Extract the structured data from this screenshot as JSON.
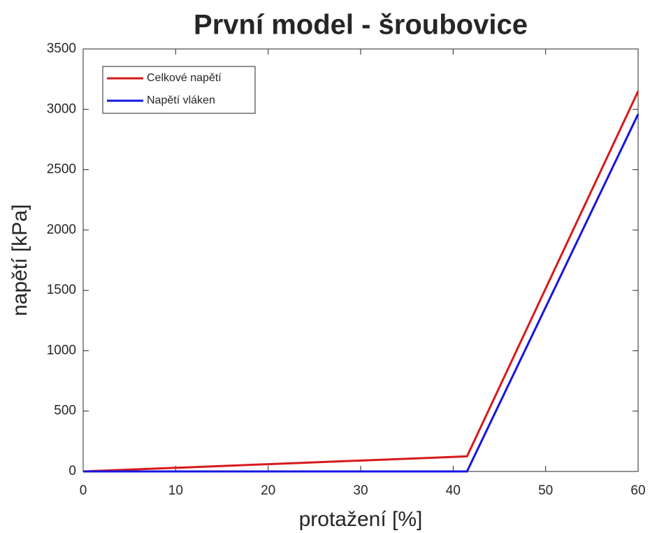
{
  "chart_data": {
    "type": "line",
    "title": "První model - šroubovice",
    "xlabel": "protažení [%]",
    "ylabel": "napětí [kPa]",
    "x": [
      0,
      41.5,
      60
    ],
    "series": [
      {
        "name": "Celkové napětí",
        "color": "#d7191c",
        "values": [
          0,
          125,
          3150
        ]
      },
      {
        "name": "Napětí vláken",
        "color": "#1515e0",
        "values": [
          0,
          0,
          2960
        ]
      }
    ],
    "xlim": [
      0,
      60
    ],
    "xticks": [
      0,
      10,
      20,
      30,
      40,
      50,
      60
    ],
    "ylim": [
      0,
      3500
    ],
    "yticks": [
      0,
      500,
      1000,
      1500,
      2000,
      2500,
      3000,
      3500
    ],
    "grid": false,
    "legend": "northwest"
  }
}
